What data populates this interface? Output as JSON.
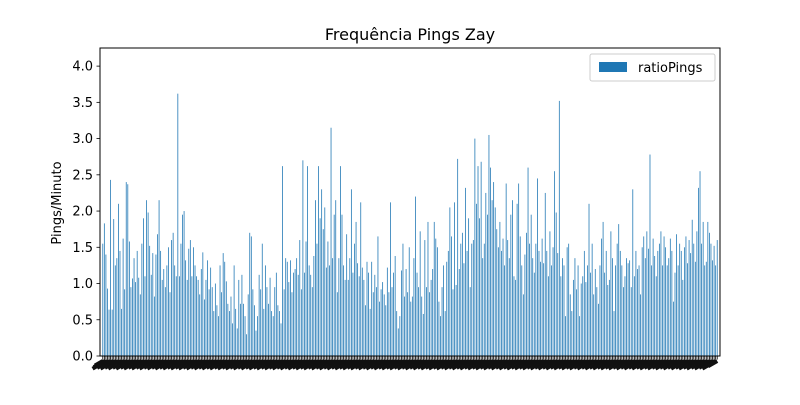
{
  "chart_data": {
    "type": "bar",
    "title": "Frequência Pings Zay",
    "xlabel": "",
    "ylabel": "Pings/Minuto",
    "ylim": [
      0,
      4.25
    ],
    "yticks": [
      "0.0",
      "0.5",
      "1.0",
      "1.5",
      "2.0",
      "2.5",
      "3.0",
      "3.5",
      "4.0"
    ],
    "grid": false,
    "legend_position": "top-right",
    "x_tick_labels_legible": false,
    "series": [
      {
        "name": "ratioPings",
        "color": "#1f77b4",
        "values": [
          1.55,
          1.83,
          1.4,
          0.93,
          0.64,
          2.43,
          0.64,
          1.89,
          1.25,
          1.35,
          2.1,
          1.45,
          0.65,
          1.62,
          0.92,
          2.4,
          2.37,
          1.58,
          0.95,
          1.07,
          1.35,
          1.02,
          1.45,
          1.08,
          0.85,
          1.55,
          1.9,
          1.1,
          2.15,
          1.98,
          1.52,
          1.12,
          1.42,
          0.82,
          1.4,
          1.68,
          2.15,
          1.45,
          1.05,
          1.2,
          0.95,
          1.25,
          1.5,
          0.88,
          1.6,
          1.7,
          1.25,
          1.1,
          3.62,
          1.1,
          1.55,
          1.95,
          2.0,
          1.32,
          1.05,
          1.48,
          1.6,
          1.1,
          1.5,
          1.25,
          1.1,
          1.05,
          0.85,
          1.2,
          1.43,
          0.78,
          1.05,
          1.32,
          0.92,
          1.22,
          0.95,
          0.62,
          1.0,
          0.7,
          0.55,
          1.25,
          0.88,
          1.42,
          1.3,
          1.03,
          0.72,
          0.62,
          0.82,
          0.45,
          1.25,
          0.65,
          0.38,
          1.05,
          0.72,
          1.12,
          0.72,
          0.55,
          0.3,
          0.85,
          1.7,
          1.65,
          0.92,
          0.7,
          0.35,
          0.55,
          1.12,
          0.92,
          1.55,
          0.65,
          1.25,
          0.95,
          0.72,
          1.08,
          0.62,
          0.55,
          0.95,
          1.15,
          0.7,
          0.62,
          0.45,
          2.62,
          0.92,
          1.35,
          1.3,
          1.02,
          1.32,
          0.88,
          1.15,
          1.2,
          1.35,
          1.12,
          1.6,
          0.92,
          2.7,
          1.15,
          1.58,
          2.62,
          1.25,
          1.12,
          0.95,
          1.38,
          2.15,
          1.55,
          2.62,
          1.9,
          2.3,
          1.75,
          2.05,
          1.22,
          1.58,
          1.25,
          3.15,
          1.35,
          1.95,
          2.15,
          0.88,
          1.35,
          2.62,
          1.95,
          1.25,
          1.05,
          1.68,
          1.05,
          1.35,
          2.3,
          1.15,
          1.55,
          1.85,
          1.28,
          1.1,
          2.12,
          1.22,
          1.05,
          0.7,
          1.3,
          1.15,
          0.65,
          1.3,
          0.88,
          1.12,
          0.95,
          1.65,
          0.75,
          0.92,
          1.02,
          0.85,
          0.7,
          1.22,
          0.88,
          2.12,
          0.95,
          1.15,
          1.38,
          0.62,
          0.38,
          0.55,
          1.18,
          1.55,
          0.82,
          1.2,
          0.88,
          1.5,
          0.75,
          0.82,
          1.35,
          2.2,
          1.15,
          0.95,
          1.72,
          0.82,
          0.58,
          1.6,
          0.95,
          1.85,
          0.88,
          1.05,
          1.2,
          1.85,
          1.62,
          1.5,
          0.75,
          0.55,
          0.95,
          1.25,
          0.62,
          1.3,
          1.45,
          2.05,
          1.65,
          0.92,
          2.12,
          0.98,
          2.72,
          1.2,
          1.55,
          1.7,
          1.28,
          2.32,
          1.45,
          1.9,
          0.95,
          1.55,
          1.6,
          3.0,
          2.1,
          2.62,
          1.9,
          2.68,
          1.35,
          1.55,
          2.25,
          1.95,
          3.05,
          2.6,
          2.15,
          2.4,
          2.05,
          1.75,
          1.5,
          1.85,
          1.45,
          1.62,
          1.25,
          2.38,
          1.6,
          1.35,
          1.95,
          2.15,
          1.1,
          1.05,
          2.1,
          2.38,
          1.65,
          1.25,
          0.85,
          1.4,
          1.7,
          2.6,
          1.55,
          1.95,
          1.35,
          1.15,
          1.55,
          2.45,
          1.45,
          1.3,
          1.62,
          1.28,
          2.25,
          1.45,
          1.1,
          1.72,
          1.25,
          1.5,
          2.55,
          1.98,
          1.42,
          3.52,
          1.1,
          1.35,
          1.25,
          0.55,
          1.5,
          1.55,
          0.85,
          0.62,
          1.05,
          1.35,
          0.92,
          1.25,
          0.55,
          1.0,
          1.1,
          1.45,
          1.02,
          1.25,
          2.1,
          1.15,
          1.55,
          0.85,
          1.2,
          0.95,
          0.72,
          1.25,
          1.62,
          1.85,
          1.15,
          1.45,
          0.98,
          1.05,
          1.72,
          1.35,
          0.62,
          1.25,
          1.55,
          1.82,
          1.45,
          1.25,
          0.95,
          1.1,
          1.35,
          1.28,
          1.32,
          0.95,
          2.3,
          1.1,
          1.45,
          1.2,
          1.25,
          0.85,
          1.5,
          1.65,
          1.35,
          1.72,
          1.48,
          2.78,
          1.25,
          1.62,
          1.38,
          1.1,
          1.45,
          1.55,
          1.72,
          1.25,
          1.65,
          1.5,
          1.25,
          1.35,
          1.62,
          1.45,
          0.75,
          1.15,
          1.68,
          1.25,
          1.55,
          1.45,
          1.05,
          1.5,
          1.65,
          1.28,
          1.6,
          1.42,
          1.88,
          1.55,
          1.3,
          1.72,
          2.32,
          2.55,
          1.55,
          1.85,
          1.25,
          1.3,
          1.85,
          1.7,
          1.55,
          1.32,
          1.52,
          1.25,
          1.6
        ]
      }
    ]
  }
}
